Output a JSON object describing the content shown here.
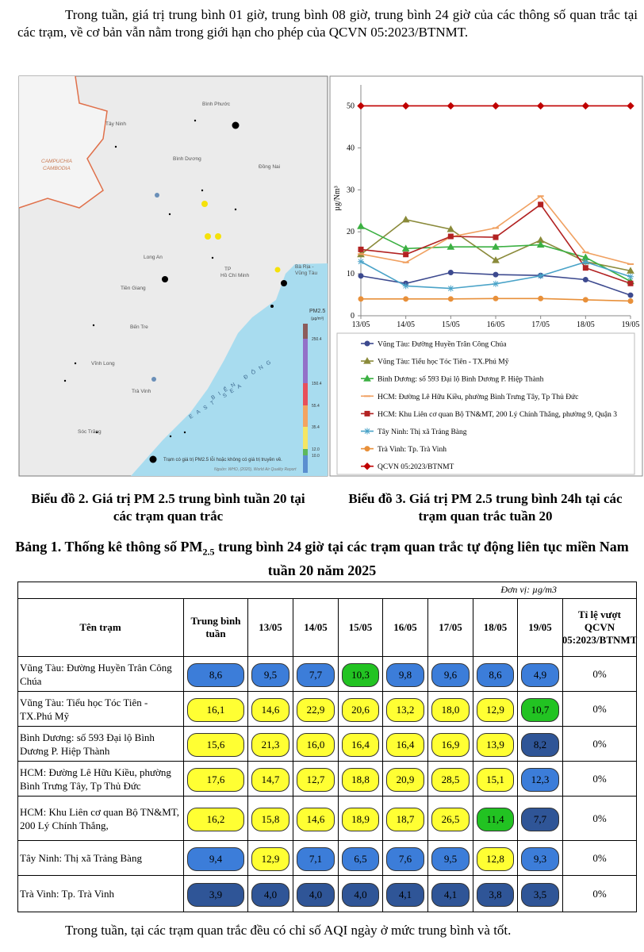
{
  "intro": "Trong tuần, giá trị trung bình 01 giờ, trung bình 08 giờ, trung bình 24 giờ của các thông số quan trắc tại các trạm, về cơ bản vẫn nằm trong giới hạn cho phép của QCVN 05:2023/BTNMT.",
  "map": {
    "labels": [
      "Bình Phước",
      "Tây Ninh",
      "CAMPUCHIA",
      "CAMBODIA",
      "Bình Dương",
      "Đồng Nai",
      "Long An",
      "TP",
      "Hồ Chí Minh",
      "Bà Rịa -",
      "Vũng Tàu",
      "Tiền Giang",
      "Bến Tre",
      "Vĩnh Long",
      "Trà Vinh",
      "Sóc Trăng",
      "BIỂN ĐÔNG",
      "EAST SEA"
    ],
    "legend_title": "PM2.5",
    "legend_unit": "(µg/m³)",
    "legend_ticks": [
      "250.4",
      "150.4",
      "55.4",
      "35.4",
      "12.0",
      "10.0"
    ],
    "legend_colors": [
      "#8c5c5c",
      "#9370c8",
      "#e8505b",
      "#f4a460",
      "#f5e663",
      "#5cb85c",
      "#5b8fd0"
    ],
    "note": "Trạm có giá trị PM2.5 lỗi hoặc không có giá trị truyền về.",
    "source": "Nguồn: WHO, (2020), World Air Quality Report"
  },
  "chart_data": {
    "type": "line",
    "ylabel": "µg/Nm³",
    "categories": [
      "13/05",
      "14/05",
      "15/05",
      "16/05",
      "17/05",
      "18/05",
      "19/05"
    ],
    "ylim": [
      0,
      55
    ],
    "yticks": [
      0,
      10,
      20,
      30,
      40,
      50
    ],
    "series": [
      {
        "name": "Vũng Tàu: Đường Huyền Trân Công Chúa",
        "color": "#3d4a8f",
        "marker": "circle",
        "values": [
          9.5,
          7.7,
          10.3,
          9.8,
          9.6,
          8.6,
          4.9
        ]
      },
      {
        "name": "Vũng Tàu: Tiểu học Tóc Tiên - TX.Phú Mỹ",
        "color": "#8a8a3a",
        "marker": "triangle",
        "values": [
          14.6,
          22.9,
          20.6,
          13.2,
          18.0,
          12.9,
          10.7
        ]
      },
      {
        "name": "Bình Dương: số 593 Đại lộ Bình Dương P. Hiệp Thành",
        "color": "#3cb043",
        "marker": "triangle",
        "values": [
          21.3,
          16.0,
          16.4,
          16.4,
          16.9,
          13.9,
          8.2
        ]
      },
      {
        "name": "HCM: Đường Lê Hữu Kiều, phường Bình Trưng Tây, Tp Thủ Đức",
        "color": "#f0a060",
        "marker": "dash",
        "values": [
          14.7,
          12.7,
          18.8,
          20.9,
          28.5,
          15.1,
          12.3
        ]
      },
      {
        "name": "HCM: Khu Liên cơ quan Bộ TN&MT, 200 Lý Chính Thắng, phường 9, Quận 3",
        "color": "#b22222",
        "marker": "square",
        "values": [
          15.8,
          14.6,
          18.9,
          18.7,
          26.5,
          11.4,
          7.7
        ]
      },
      {
        "name": "Tây Ninh: Thị xã Trảng Bàng",
        "color": "#4aa3c8",
        "marker": "star",
        "values": [
          12.9,
          7.1,
          6.5,
          7.6,
          9.5,
          12.8,
          9.3
        ]
      },
      {
        "name": "Trà Vinh: Tp. Trà Vinh",
        "color": "#e8903a",
        "marker": "circle",
        "values": [
          4.0,
          4.0,
          4.0,
          4.1,
          4.1,
          3.8,
          3.5
        ]
      },
      {
        "name": "QCVN 05:2023/BTNMT",
        "color": "#c00000",
        "marker": "diamond",
        "values": [
          50,
          50,
          50,
          50,
          50,
          50,
          50
        ]
      }
    ]
  },
  "captions": [
    "Biểu đồ 2. Giá trị PM 2.5 trung bình tuần 20 tại các trạm quan trắc",
    "Biểu đồ 3. Giá trị PM 2.5 trung bình 24h tại các trạm quan trắc tuần 20"
  ],
  "table": {
    "title": [
      "Bảng 1. Thống kê thông số PM",
      "2.5",
      " trung bình 24 giờ tại các trạm quan trắc tự động liên tục miền Nam tuần 20 năm 2025"
    ],
    "unit": "Đơn vị: µg/m3",
    "header": [
      "Tên trạm",
      "Trung bình tuần",
      "13/05",
      "14/05",
      "15/05",
      "16/05",
      "17/05",
      "18/05",
      "19/05",
      "Tỉ lệ vượt QCVN 05:2023/BTNMT"
    ],
    "rows": [
      [
        "Vũng Tàu: Đường Huyền Trân Công Chúa",
        "8,6",
        "9,5",
        "7,7",
        "10,3",
        "9,8",
        "9,6",
        "8,6",
        "4,9",
        "0%"
      ],
      [
        "Vũng Tàu: Tiểu học Tóc Tiên - TX.Phú Mỹ",
        "16,1",
        "14,6",
        "22,9",
        "20,6",
        "13,2",
        "18,0",
        "12,9",
        "10,7",
        "0%"
      ],
      [
        "Bình Dương: số 593 Đại lộ Bình Dương P. Hiệp Thành",
        "15,6",
        "21,3",
        "16,0",
        "16,4",
        "16,4",
        "16,9",
        "13,9",
        "8,2",
        "0%"
      ],
      [
        "HCM: Đường Lê Hữu Kiều, phường Bình Trưng Tây, Tp Thủ Đức",
        "17,6",
        "14,7",
        "12,7",
        "18,8",
        "20,9",
        "28,5",
        "15,1",
        "12,3",
        "0%"
      ],
      [
        "HCM: Khu Liên cơ quan Bộ TN&MT, 200 Lý Chính Thắng,",
        "16,2",
        "15,8",
        "14,6",
        "18,9",
        "18,7",
        "26,5",
        "11,4",
        "7,7",
        "0%"
      ],
      [
        "Tây Ninh: Thị xã Trảng Bàng",
        "9,4",
        "12,9",
        "7,1",
        "6,5",
        "7,6",
        "9,5",
        "12,8",
        "9,3",
        "0%"
      ],
      [
        "Trà Vinh: Tp. Trà Vinh",
        "3,9",
        "4,0",
        "4,0",
        "4,0",
        "4,1",
        "4,1",
        "3,8",
        "3,5",
        "0%"
      ]
    ],
    "cell_colors": [
      [
        "#3c7dd9",
        "#3c7dd9",
        "#3c7dd9",
        "#22c322",
        "#3c7dd9",
        "#3c7dd9",
        "#3c7dd9",
        "#3c7dd9"
      ],
      [
        "#ffff33",
        "#ffff33",
        "#ffff33",
        "#ffff33",
        "#ffff33",
        "#ffff33",
        "#ffff33",
        "#22c322"
      ],
      [
        "#ffff33",
        "#ffff33",
        "#ffff33",
        "#ffff33",
        "#ffff33",
        "#ffff33",
        "#ffff33",
        "#2f5597"
      ],
      [
        "#ffff33",
        "#ffff33",
        "#ffff33",
        "#ffff33",
        "#ffff33",
        "#ffff33",
        "#ffff33",
        "#3c7dd9"
      ],
      [
        "#ffff33",
        "#ffff33",
        "#ffff33",
        "#ffff33",
        "#ffff33",
        "#ffff33",
        "#22c322",
        "#2f5597"
      ],
      [
        "#3c7dd9",
        "#ffff33",
        "#3c7dd9",
        "#3c7dd9",
        "#3c7dd9",
        "#3c7dd9",
        "#ffff33",
        "#3c7dd9"
      ],
      [
        "#2f5597",
        "#2f5597",
        "#2f5597",
        "#2f5597",
        "#2f5597",
        "#2f5597",
        "#2f5597",
        "#2f5597"
      ]
    ]
  },
  "outro": "Trong tuần, tại các trạm quan trắc đều có chỉ số AQI ngày ở mức trung bình và tốt."
}
